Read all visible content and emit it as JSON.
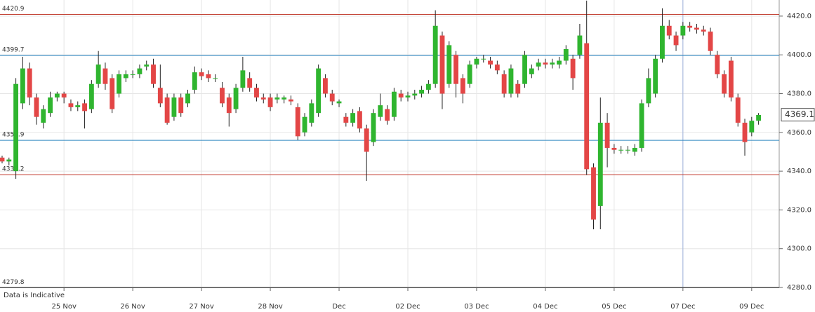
{
  "chart_data": {
    "type": "candlestick",
    "note": "Data is Indicative",
    "xlim": [
      0,
      113
    ],
    "ylim": [
      4280,
      4428.3
    ],
    "yticks": [
      {
        "value": 4280,
        "label": "4280.0"
      },
      {
        "value": 4300,
        "label": "4300.0"
      },
      {
        "value": 4320,
        "label": "4320.0"
      },
      {
        "value": 4340,
        "label": "4340.0"
      },
      {
        "value": 4360,
        "label": "4360.0"
      },
      {
        "value": 4380,
        "label": "4380.0"
      },
      {
        "value": 4400,
        "label": "4400.0"
      },
      {
        "value": 4420,
        "label": "4420.0"
      }
    ],
    "xticks": [
      {
        "value": 9,
        "label": "25 Nov"
      },
      {
        "value": 19,
        "label": "26 Nov"
      },
      {
        "value": 29,
        "label": "27 Nov"
      },
      {
        "value": 39,
        "label": "28 Nov"
      },
      {
        "value": 49,
        "label": "Dec"
      },
      {
        "value": 59,
        "label": "02 Dec"
      },
      {
        "value": 69,
        "label": "03 Dec"
      },
      {
        "value": 79,
        "label": "04 Dec"
      },
      {
        "value": 89,
        "label": "05 Dec"
      },
      {
        "value": 99,
        "label": "07 Dec"
      },
      {
        "value": 109,
        "label": "09 Dec"
      }
    ],
    "grid": true,
    "up_color": "#2fb52f",
    "down_color": "#e34646",
    "crosshair": {
      "x": 99,
      "color": "#9fb3dc"
    },
    "levels": [
      {
        "value": 4420.9,
        "color": "#c0392b"
      },
      {
        "value": 4399.7,
        "color": "#2e86c1"
      },
      {
        "value": 4355.9,
        "color": "#2e86c1"
      },
      {
        "value": 4338.2,
        "color": "#c0392b"
      },
      {
        "value": 4279.8,
        "color": "#555555"
      }
    ],
    "last_price": 4369.1,
    "open": [
      4347,
      4345,
      4340,
      4375,
      4393,
      4378,
      4365,
      4370,
      4378,
      4380,
      4375,
      4373,
      4375,
      4372,
      4385,
      4393,
      4388,
      4380,
      4388,
      4390,
      4390,
      4394,
      4395,
      4383,
      4378,
      4368,
      4378,
      4375,
      4382,
      4391,
      4390,
      4388,
      4383,
      4378,
      4372,
      4383,
      4388,
      4383,
      4378,
      4378,
      4377,
      4377,
      4377,
      4373,
      4360,
      4365,
      4370,
      4388,
      4380,
      4375,
      4368,
      4365,
      4371,
      4362,
      4355,
      4368,
      4372,
      4368,
      4380,
      4378,
      4379,
      4380,
      4382,
      4385,
      4410,
      4385,
      4400,
      4388,
      4385,
      4395,
      4398,
      4397,
      4395,
      4390,
      4380,
      4385,
      4385,
      4390,
      4394,
      4396,
      4395,
      4395,
      4397,
      4398,
      4400,
      4406,
      4342,
      4322,
      4365,
      4352,
      4351,
      4351,
      4350,
      4352,
      4375,
      4380,
      4398,
      4415,
      4410,
      4410,
      4415,
      4414,
      4413,
      4412,
      4400,
      4390,
      4397,
      4378,
      4365,
      4360,
      4366
    ],
    "high": [
      4348,
      4347,
      4388,
      4399,
      4396,
      4380,
      4374,
      4381,
      4381,
      4381,
      4377,
      4376,
      4377,
      4387,
      4402,
      4396,
      4390,
      4392,
      4392,
      4392,
      4395,
      4397,
      4398,
      4395,
      4380,
      4380,
      4380,
      4382,
      4394,
      4393,
      4392,
      4390,
      4386,
      4380,
      4385,
      4399,
      4391,
      4385,
      4380,
      4380,
      4380,
      4379,
      4379,
      4375,
      4370,
      4377,
      4395,
      4390,
      4382,
      4377,
      4370,
      4372,
      4373,
      4364,
      4372,
      4380,
      4374,
      4383,
      4382,
      4381,
      4382,
      4384,
      4387,
      4423,
      4412,
      4407,
      4402,
      4390,
      4397,
      4399,
      4400,
      4399,
      4397,
      4392,
      4395,
      4387,
      4402,
      4395,
      4398,
      4398,
      4398,
      4399,
      4405,
      4400,
      4416,
      4428,
      4344,
      4378,
      4370,
      4354,
      4353,
      4353,
      4354,
      4377,
      4393,
      4400,
      4424,
      4418,
      4412,
      4417,
      4417,
      4416,
      4415,
      4414,
      4402,
      4392,
      4399,
      4380,
      4367,
      4368,
      4370
    ],
    "low": [
      4344,
      4343,
      4336,
      4372,
      4374,
      4364,
      4362,
      4368,
      4376,
      4375,
      4371,
      4371,
      4362,
      4370,
      4383,
      4382,
      4370,
      4378,
      4386,
      4388,
      4388,
      4392,
      4383,
      4373,
      4364,
      4366,
      4368,
      4373,
      4380,
      4387,
      4386,
      4386,
      4373,
      4363,
      4370,
      4381,
      4381,
      4376,
      4375,
      4371,
      4375,
      4375,
      4374,
      4356,
      4358,
      4363,
      4368,
      4378,
      4374,
      4373,
      4363,
      4363,
      4360,
      4335,
      4353,
      4366,
      4364,
      4366,
      4376,
      4376,
      4377,
      4378,
      4380,
      4383,
      4372,
      4383,
      4378,
      4375,
      4383,
      4393,
      4396,
      4393,
      4390,
      4378,
      4378,
      4378,
      4383,
      4388,
      4392,
      4393,
      4393,
      4393,
      4395,
      4382,
      4398,
      4338,
      4310,
      4310,
      4342,
      4349,
      4349,
      4349,
      4348,
      4350,
      4373,
      4378,
      4396,
      4408,
      4402,
      4408,
      4412,
      4411,
      4410,
      4400,
      4388,
      4378,
      4376,
      4363,
      4348,
      4358,
      4364
    ],
    "close": [
      4345,
      4346,
      4385,
      4393,
      4378,
      4368,
      4372,
      4378,
      4380,
      4378,
      4373,
      4374,
      4371,
      4385,
      4395,
      4385,
      4372,
      4390,
      4390,
      4390,
      4393,
      4395,
      4385,
      4375,
      4365,
      4378,
      4370,
      4380,
      4391,
      4389,
      4388,
      4388,
      4375,
      4370,
      4383,
      4392,
      4383,
      4378,
      4377,
      4373,
      4378,
      4378,
      4376,
      4358,
      4368,
      4375,
      4393,
      4380,
      4376,
      4376,
      4365,
      4370,
      4362,
      4350,
      4370,
      4374,
      4366,
      4381,
      4378,
      4379,
      4380,
      4382,
      4385,
      4415,
      4380,
      4405,
      4385,
      4380,
      4395,
      4398,
      4398,
      4395,
      4392,
      4380,
      4393,
      4380,
      4400,
      4393,
      4396,
      4395,
      4396,
      4397,
      4403,
      4388,
      4410,
      4341,
      4315,
      4365,
      4352,
      4351,
      4351,
      4351,
      4352,
      4375,
      4388,
      4398,
      4415,
      4410,
      4405,
      4415,
      4414,
      4413,
      4412,
      4402,
      4390,
      4380,
      4378,
      4365,
      4355,
      4366,
      4369
    ]
  }
}
